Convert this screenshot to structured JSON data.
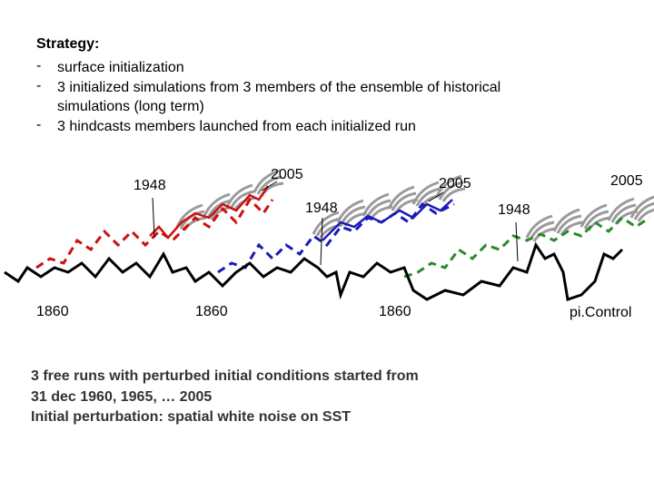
{
  "header": {
    "title": "Strategy:"
  },
  "bullets": [
    "surface initialization",
    "3 initialized simulations from 3 members of the ensemble of historical simulations (long term)",
    "3 hindcasts members launched from each initialized run"
  ],
  "diagram": {
    "labels": [
      "1948",
      "2005",
      "1948",
      "2005",
      "2005",
      "1948",
      "1860",
      "1860",
      "1860",
      "pi.Control"
    ]
  },
  "footer": {
    "lines": [
      "3 free runs with perturbed initial conditions started from",
      "31 dec 1960, 1965, … 2005",
      "Initial perturbation: spatial white noise on SST"
    ]
  }
}
